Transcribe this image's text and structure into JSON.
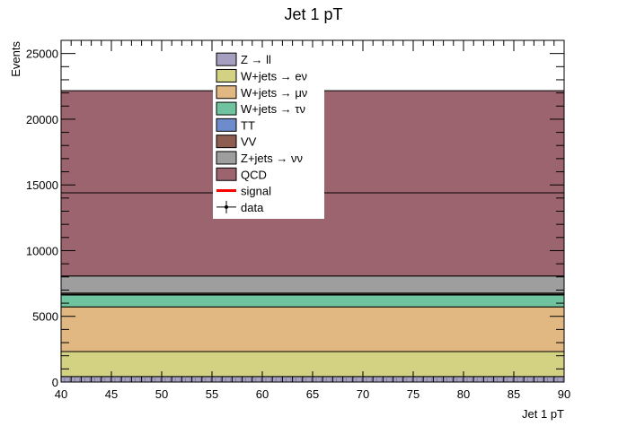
{
  "chart_data": {
    "type": "bar",
    "title": "Jet 1 pT",
    "xlabel": "Jet 1 pT",
    "ylabel": "Events",
    "xlim": [
      40,
      90
    ],
    "ylim": [
      0,
      26000
    ],
    "x_ticks": [
      40,
      45,
      50,
      55,
      60,
      65,
      70,
      75,
      80,
      85,
      90
    ],
    "y_ticks": [
      0,
      5000,
      10000,
      15000,
      20000,
      25000
    ],
    "stacked": true,
    "series": [
      {
        "name": "Z → ll",
        "color": "#a69fbf",
        "values": [
          420
        ]
      },
      {
        "name": "W+jets → eν",
        "color": "#d2d282",
        "values": [
          1900
        ]
      },
      {
        "name": "W+jets → μν",
        "color": "#e2b882",
        "values": [
          3400
        ]
      },
      {
        "name": "W+jets → τν",
        "color": "#6fc39f",
        "values": [
          900
        ]
      },
      {
        "name": "TT",
        "color": "#6e8ccb",
        "values": [
          50
        ]
      },
      {
        "name": "VV",
        "color": "#8c5d50",
        "values": [
          100
        ]
      },
      {
        "name": "Z+jets → νν",
        "color": "#9e9e9e",
        "values": [
          1300
        ]
      },
      {
        "name": "QCD",
        "color": "#9b646e",
        "values": [
          14100
        ]
      }
    ],
    "internal_line": 14400,
    "overlays": [
      {
        "name": "signal",
        "color": "#ff0000"
      },
      {
        "name": "data",
        "color": "#000000"
      }
    ],
    "legend_position": "top-center",
    "grid": false
  }
}
